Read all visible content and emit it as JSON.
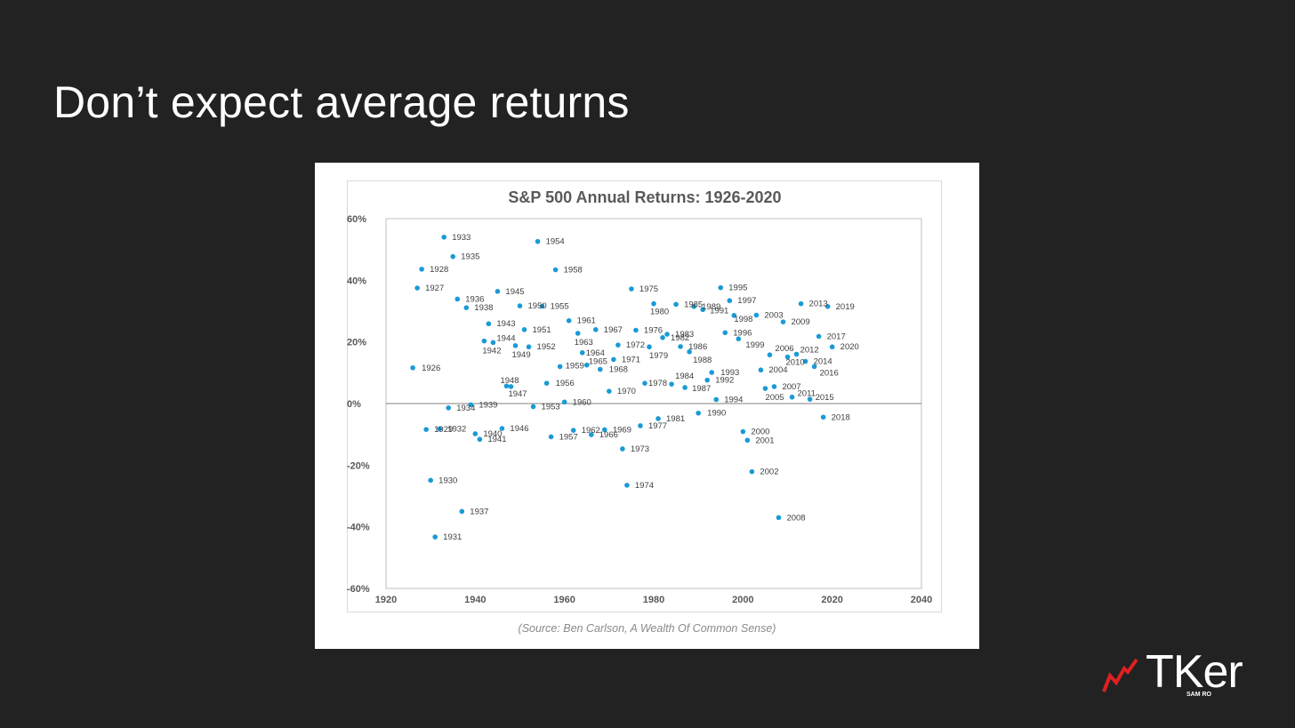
{
  "slide": {
    "title": "Don’t expect average returns"
  },
  "source_note": "(Source: Ben Carlson, A Wealth Of Common Sense)",
  "logo": {
    "text": "TKer",
    "subtext": "SAM RO",
    "mark_color": "#e02020"
  },
  "chart_data": {
    "type": "scatter",
    "title": "S&P 500 Annual Returns: 1926-2020",
    "xlabel": "",
    "ylabel": "",
    "xlim": [
      1920,
      2040
    ],
    "ylim": [
      -60,
      60
    ],
    "x_ticks": [
      1920,
      1940,
      1960,
      1980,
      2000,
      2020,
      2040
    ],
    "x_tick_labels": [
      "1920",
      "1940",
      "1960",
      "1980",
      "2000",
      "2020",
      "2040"
    ],
    "y_ticks": [
      -60,
      -40,
      -20,
      0,
      20,
      40,
      60
    ],
    "y_tick_labels": [
      "-60%",
      "-40%",
      "-20%",
      "0%",
      "20%",
      "40%",
      "60%"
    ],
    "grid": false,
    "zero_line": true,
    "point_color": "#1a9ad6",
    "points": [
      {
        "x": 1926,
        "y": 11.6,
        "label": "1926"
      },
      {
        "x": 1927,
        "y": 37.5,
        "label": "1927"
      },
      {
        "x": 1928,
        "y": 43.6,
        "label": "1928"
      },
      {
        "x": 1929,
        "y": -8.4,
        "label": "1929"
      },
      {
        "x": 1930,
        "y": -24.9,
        "label": "1930"
      },
      {
        "x": 1931,
        "y": -43.3,
        "label": "1931"
      },
      {
        "x": 1932,
        "y": -8.2,
        "label": "1932"
      },
      {
        "x": 1933,
        "y": 54.0,
        "label": "1933"
      },
      {
        "x": 1934,
        "y": -1.4,
        "label": "1934"
      },
      {
        "x": 1935,
        "y": 47.7,
        "label": "1935"
      },
      {
        "x": 1936,
        "y": 33.9,
        "label": "1936"
      },
      {
        "x": 1937,
        "y": -35.0,
        "label": "1937"
      },
      {
        "x": 1938,
        "y": 31.1,
        "label": "1938"
      },
      {
        "x": 1939,
        "y": -0.4,
        "label": "1939"
      },
      {
        "x": 1940,
        "y": -9.8,
        "label": "1940"
      },
      {
        "x": 1941,
        "y": -11.6,
        "label": "1941"
      },
      {
        "x": 1942,
        "y": 20.3,
        "label": "1942"
      },
      {
        "x": 1943,
        "y": 25.9,
        "label": "1943"
      },
      {
        "x": 1944,
        "y": 19.8,
        "label": "1944"
      },
      {
        "x": 1945,
        "y": 36.4,
        "label": "1945"
      },
      {
        "x": 1946,
        "y": -8.1,
        "label": "1946"
      },
      {
        "x": 1947,
        "y": 5.7,
        "label": "1947"
      },
      {
        "x": 1948,
        "y": 5.5,
        "label": "1948"
      },
      {
        "x": 1949,
        "y": 18.8,
        "label": "1949"
      },
      {
        "x": 1950,
        "y": 31.7,
        "label": "1950"
      },
      {
        "x": 1951,
        "y": 24.0,
        "label": "1951"
      },
      {
        "x": 1952,
        "y": 18.4,
        "label": "1952"
      },
      {
        "x": 1953,
        "y": -1.0,
        "label": "1953"
      },
      {
        "x": 1954,
        "y": 52.6,
        "label": "1954"
      },
      {
        "x": 1955,
        "y": 31.6,
        "label": "1955"
      },
      {
        "x": 1956,
        "y": 6.6,
        "label": "1956"
      },
      {
        "x": 1957,
        "y": -10.8,
        "label": "1957"
      },
      {
        "x": 1958,
        "y": 43.4,
        "label": "1958"
      },
      {
        "x": 1959,
        "y": 12.0,
        "label": "1959"
      },
      {
        "x": 1960,
        "y": 0.5,
        "label": "1960"
      },
      {
        "x": 1961,
        "y": 26.9,
        "label": "1961"
      },
      {
        "x": 1962,
        "y": -8.7,
        "label": "1962"
      },
      {
        "x": 1963,
        "y": 22.8,
        "label": "1963"
      },
      {
        "x": 1964,
        "y": 16.5,
        "label": "1964"
      },
      {
        "x": 1965,
        "y": 12.5,
        "label": "1965"
      },
      {
        "x": 1966,
        "y": -10.1,
        "label": "1966"
      },
      {
        "x": 1967,
        "y": 24.0,
        "label": "1967"
      },
      {
        "x": 1968,
        "y": 11.1,
        "label": "1968"
      },
      {
        "x": 1969,
        "y": -8.5,
        "label": "1969"
      },
      {
        "x": 1970,
        "y": 4.0,
        "label": "1970"
      },
      {
        "x": 1971,
        "y": 14.3,
        "label": "1971"
      },
      {
        "x": 1972,
        "y": 19.0,
        "label": "1972"
      },
      {
        "x": 1973,
        "y": -14.7,
        "label": "1973"
      },
      {
        "x": 1974,
        "y": -26.5,
        "label": "1974"
      },
      {
        "x": 1975,
        "y": 37.2,
        "label": "1975"
      },
      {
        "x": 1976,
        "y": 23.8,
        "label": "1976"
      },
      {
        "x": 1977,
        "y": -7.2,
        "label": "1977"
      },
      {
        "x": 1978,
        "y": 6.6,
        "label": "1978"
      },
      {
        "x": 1979,
        "y": 18.4,
        "label": "1979"
      },
      {
        "x": 1980,
        "y": 32.4,
        "label": "1980"
      },
      {
        "x": 1981,
        "y": -4.9,
        "label": "1981"
      },
      {
        "x": 1982,
        "y": 21.4,
        "label": "1982"
      },
      {
        "x": 1983,
        "y": 22.5,
        "label": "1983"
      },
      {
        "x": 1984,
        "y": 6.3,
        "label": "1984"
      },
      {
        "x": 1985,
        "y": 32.2,
        "label": "1985"
      },
      {
        "x": 1986,
        "y": 18.5,
        "label": "1986"
      },
      {
        "x": 1987,
        "y": 5.2,
        "label": "1987"
      },
      {
        "x": 1988,
        "y": 16.8,
        "label": "1988"
      },
      {
        "x": 1989,
        "y": 31.5,
        "label": "1989"
      },
      {
        "x": 1990,
        "y": -3.1,
        "label": "1990"
      },
      {
        "x": 1991,
        "y": 30.5,
        "label": "1991"
      },
      {
        "x": 1992,
        "y": 7.6,
        "label": "1992"
      },
      {
        "x": 1993,
        "y": 10.1,
        "label": "1993"
      },
      {
        "x": 1994,
        "y": 1.3,
        "label": "1994"
      },
      {
        "x": 1995,
        "y": 37.6,
        "label": "1995"
      },
      {
        "x": 1996,
        "y": 23.0,
        "label": "1996"
      },
      {
        "x": 1997,
        "y": 33.4,
        "label": "1997"
      },
      {
        "x": 1998,
        "y": 28.6,
        "label": "1998"
      },
      {
        "x": 1999,
        "y": 21.0,
        "label": "1999"
      },
      {
        "x": 2000,
        "y": -9.1,
        "label": "2000"
      },
      {
        "x": 2001,
        "y": -11.9,
        "label": "2001"
      },
      {
        "x": 2002,
        "y": -22.1,
        "label": "2002"
      },
      {
        "x": 2003,
        "y": 28.7,
        "label": "2003"
      },
      {
        "x": 2004,
        "y": 10.9,
        "label": "2004"
      },
      {
        "x": 2005,
        "y": 4.9,
        "label": "2005"
      },
      {
        "x": 2006,
        "y": 15.8,
        "label": "2006"
      },
      {
        "x": 2007,
        "y": 5.5,
        "label": "2007"
      },
      {
        "x": 2008,
        "y": -37.0,
        "label": "2008"
      },
      {
        "x": 2009,
        "y": 26.5,
        "label": "2009"
      },
      {
        "x": 2010,
        "y": 15.1,
        "label": "2010"
      },
      {
        "x": 2011,
        "y": 2.1,
        "label": "2011"
      },
      {
        "x": 2012,
        "y": 16.0,
        "label": "2012"
      },
      {
        "x": 2013,
        "y": 32.4,
        "label": "2013"
      },
      {
        "x": 2014,
        "y": 13.7,
        "label": "2014"
      },
      {
        "x": 2015,
        "y": 1.4,
        "label": "2015"
      },
      {
        "x": 2016,
        "y": 12.0,
        "label": "2016"
      },
      {
        "x": 2017,
        "y": 21.8,
        "label": "2017"
      },
      {
        "x": 2018,
        "y": -4.4,
        "label": "2018"
      },
      {
        "x": 2019,
        "y": 31.5,
        "label": "2019"
      },
      {
        "x": 2020,
        "y": 18.4,
        "label": "2020"
      }
    ]
  }
}
